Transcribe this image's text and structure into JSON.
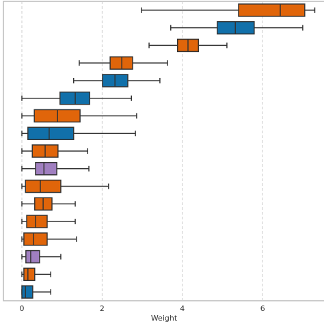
{
  "chart_data": {
    "type": "boxplot",
    "x_label": "Weight",
    "xlim": [
      -0.46,
      7.53
    ],
    "xticks": [
      0,
      2,
      4,
      6
    ],
    "grid": true,
    "boxes": [
      {
        "color": "#e0650a",
        "min": 2.98,
        "q1": 5.4,
        "median": 6.44,
        "q3": 7.05,
        "max": 7.3
      },
      {
        "color": "#1170aa",
        "min": 3.71,
        "q1": 4.87,
        "median": 5.32,
        "q3": 5.79,
        "max": 7.0
      },
      {
        "color": "#e0650a",
        "min": 3.17,
        "q1": 3.88,
        "median": 4.14,
        "q3": 4.4,
        "max": 5.11
      },
      {
        "color": "#e0650a",
        "min": 1.43,
        "q1": 2.2,
        "median": 2.49,
        "q3": 2.76,
        "max": 3.63
      },
      {
        "color": "#1170aa",
        "min": 1.29,
        "q1": 2.01,
        "median": 2.32,
        "q3": 2.64,
        "max": 3.44
      },
      {
        "color": "#1170aa",
        "min": 0,
        "q1": 0.95,
        "median": 1.33,
        "q3": 1.69,
        "max": 2.73
      },
      {
        "color": "#e0650a",
        "min": 0,
        "q1": 0.31,
        "median": 0.89,
        "q3": 1.45,
        "max": 2.86
      },
      {
        "color": "#1170aa",
        "min": 0,
        "q1": 0.15,
        "median": 0.68,
        "q3": 1.29,
        "max": 2.83
      },
      {
        "color": "#e0650a",
        "min": 0,
        "q1": 0.26,
        "median": 0.58,
        "q3": 0.9,
        "max": 1.64
      },
      {
        "color": "#a07fc0",
        "min": 0,
        "q1": 0.34,
        "median": 0.55,
        "q3": 0.87,
        "max": 1.67
      },
      {
        "color": "#e0650a",
        "min": 0,
        "q1": 0.09,
        "median": 0.46,
        "q3": 0.97,
        "max": 2.16
      },
      {
        "color": "#e0650a",
        "min": 0,
        "q1": 0.32,
        "median": 0.53,
        "q3": 0.75,
        "max": 1.33
      },
      {
        "color": "#e0650a",
        "min": 0,
        "q1": 0.12,
        "median": 0.34,
        "q3": 0.63,
        "max": 1.33
      },
      {
        "color": "#e0650a",
        "min": 0,
        "q1": 0.05,
        "median": 0.29,
        "q3": 0.63,
        "max": 1.36
      },
      {
        "color": "#a07fc0",
        "min": 0,
        "q1": 0.1,
        "median": 0.22,
        "q3": 0.44,
        "max": 0.97
      },
      {
        "color": "#e0650a",
        "min": 0,
        "q1": 0.05,
        "median": 0.15,
        "q3": 0.32,
        "max": 0.72
      },
      {
        "color": "#1170aa",
        "min": 0,
        "q1": 0,
        "median": 0.09,
        "q3": 0.27,
        "max": 0.72
      }
    ]
  }
}
